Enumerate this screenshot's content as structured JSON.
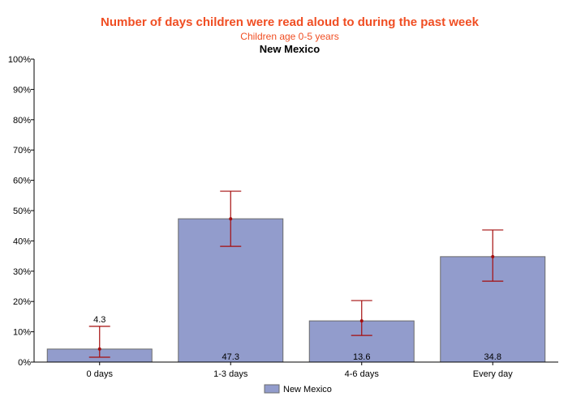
{
  "chart_data": {
    "type": "bar",
    "title": "Number of days children were read aloud to during the past week",
    "subtitle": "Children age 0-5 years",
    "subtitle2": "New Mexico",
    "categories": [
      "0 days",
      "1-3 days",
      "4-6 days",
      "Every day"
    ],
    "series": [
      {
        "name": "New Mexico",
        "values": [
          4.3,
          47.3,
          13.6,
          34.8
        ],
        "labels": [
          "4.3",
          "47.3",
          "13.6",
          "34.8"
        ],
        "ci_lower": [
          1.6,
          38.2,
          8.8,
          26.7
        ],
        "ci_upper": [
          11.8,
          56.4,
          20.3,
          43.6
        ],
        "color": "#929ccc"
      }
    ],
    "error_bar_color": "#a50d0d",
    "title_color": "#f04e23",
    "yticks": [
      "0%",
      "10%",
      "20%",
      "30%",
      "40%",
      "50%",
      "60%",
      "70%",
      "80%",
      "90%",
      "100%"
    ],
    "ylim": [
      0,
      100
    ],
    "grid": false,
    "legend": "bottom"
  }
}
